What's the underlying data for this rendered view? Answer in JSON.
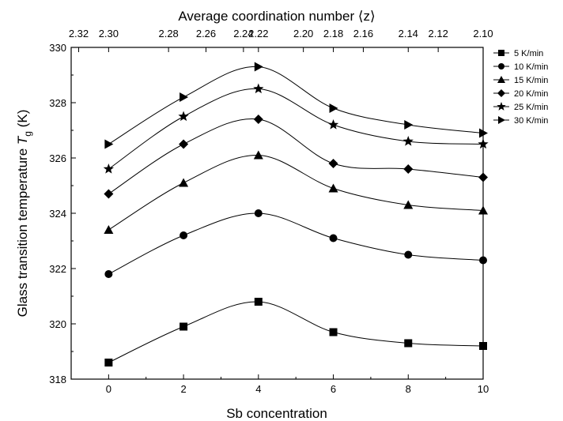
{
  "chart_data": {
    "type": "line",
    "xlabel": "Sb concentration",
    "ylabel_main": "Glass transition temperature ",
    "ylabel_symbol": "T",
    "ylabel_subscript": "g",
    "ylabel_unit": " (K)",
    "top_xlabel": "Average coordination number ⟨z⟩",
    "xlim": [
      -1,
      10
    ],
    "ylim": [
      318,
      330
    ],
    "x": [
      0,
      2,
      4,
      6,
      8,
      10
    ],
    "x_ticks": [
      "0",
      "2",
      "4",
      "6",
      "8",
      "10"
    ],
    "y_ticks": [
      "318",
      "320",
      "322",
      "324",
      "326",
      "328",
      "330"
    ],
    "top_ticks": [
      {
        "x": -0.8,
        "label": "2.32"
      },
      {
        "x": 0.0,
        "label": "2.30"
      },
      {
        "x": 1.6,
        "label": "2.28"
      },
      {
        "x": 2.6,
        "label": "2.26"
      },
      {
        "x": 3.6,
        "label": "2.24"
      },
      {
        "x": 4.0,
        "label": "2.22"
      },
      {
        "x": 5.2,
        "label": "2.20"
      },
      {
        "x": 6.0,
        "label": "2.18"
      },
      {
        "x": 6.8,
        "label": "2.16"
      },
      {
        "x": 8.0,
        "label": "2.14"
      },
      {
        "x": 8.8,
        "label": "2.12"
      },
      {
        "x": 10.0,
        "label": "2.10"
      }
    ],
    "legend_position": "top-right",
    "series": [
      {
        "name": "5 K/min",
        "marker": "square",
        "values": [
          318.6,
          319.9,
          320.8,
          319.7,
          319.3,
          319.2
        ]
      },
      {
        "name": "10 K/min",
        "marker": "circle",
        "values": [
          321.8,
          323.2,
          324.0,
          323.1,
          322.5,
          322.3
        ]
      },
      {
        "name": "15 K/min",
        "marker": "triangle-up",
        "values": [
          323.4,
          325.1,
          326.1,
          324.9,
          324.3,
          324.1
        ]
      },
      {
        "name": "20 K/min",
        "marker": "diamond",
        "values": [
          324.7,
          326.5,
          327.4,
          325.8,
          325.6,
          325.3
        ]
      },
      {
        "name": "25 K/min",
        "marker": "star",
        "values": [
          325.6,
          327.5,
          328.5,
          327.2,
          326.6,
          326.5
        ]
      },
      {
        "name": "30 K/min",
        "marker": "triangle-right",
        "values": [
          326.5,
          328.2,
          329.3,
          327.8,
          327.2,
          326.9
        ]
      }
    ]
  }
}
